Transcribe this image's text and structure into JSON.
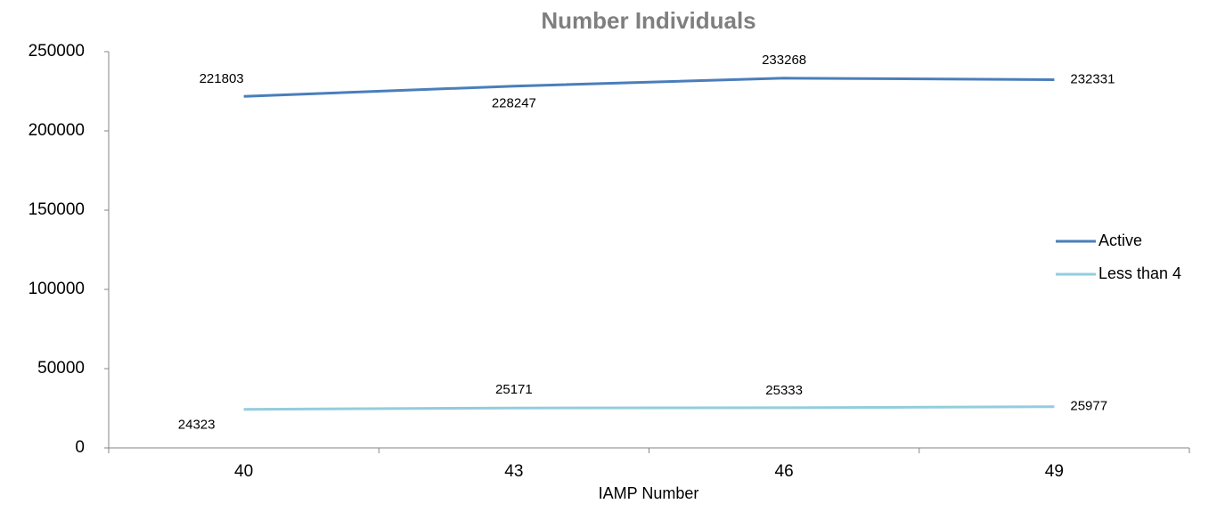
{
  "chart_data": {
    "type": "line",
    "title": "Number Individuals",
    "x_label": "IAMP Number",
    "categories": [
      "40",
      "43",
      "46",
      "49"
    ],
    "series": [
      {
        "name": "Active",
        "color": "#4a7ebb",
        "values": [
          221803,
          228247,
          233268,
          232331
        ]
      },
      {
        "name": "Less than 4",
        "color": "#93cddd",
        "values": [
          24323,
          25171,
          25333,
          25977
        ]
      }
    ],
    "ylim": [
      0,
      250000
    ],
    "yticks": [
      0,
      50000,
      100000,
      150000,
      200000,
      250000
    ],
    "grid": false,
    "legend": "right"
  }
}
